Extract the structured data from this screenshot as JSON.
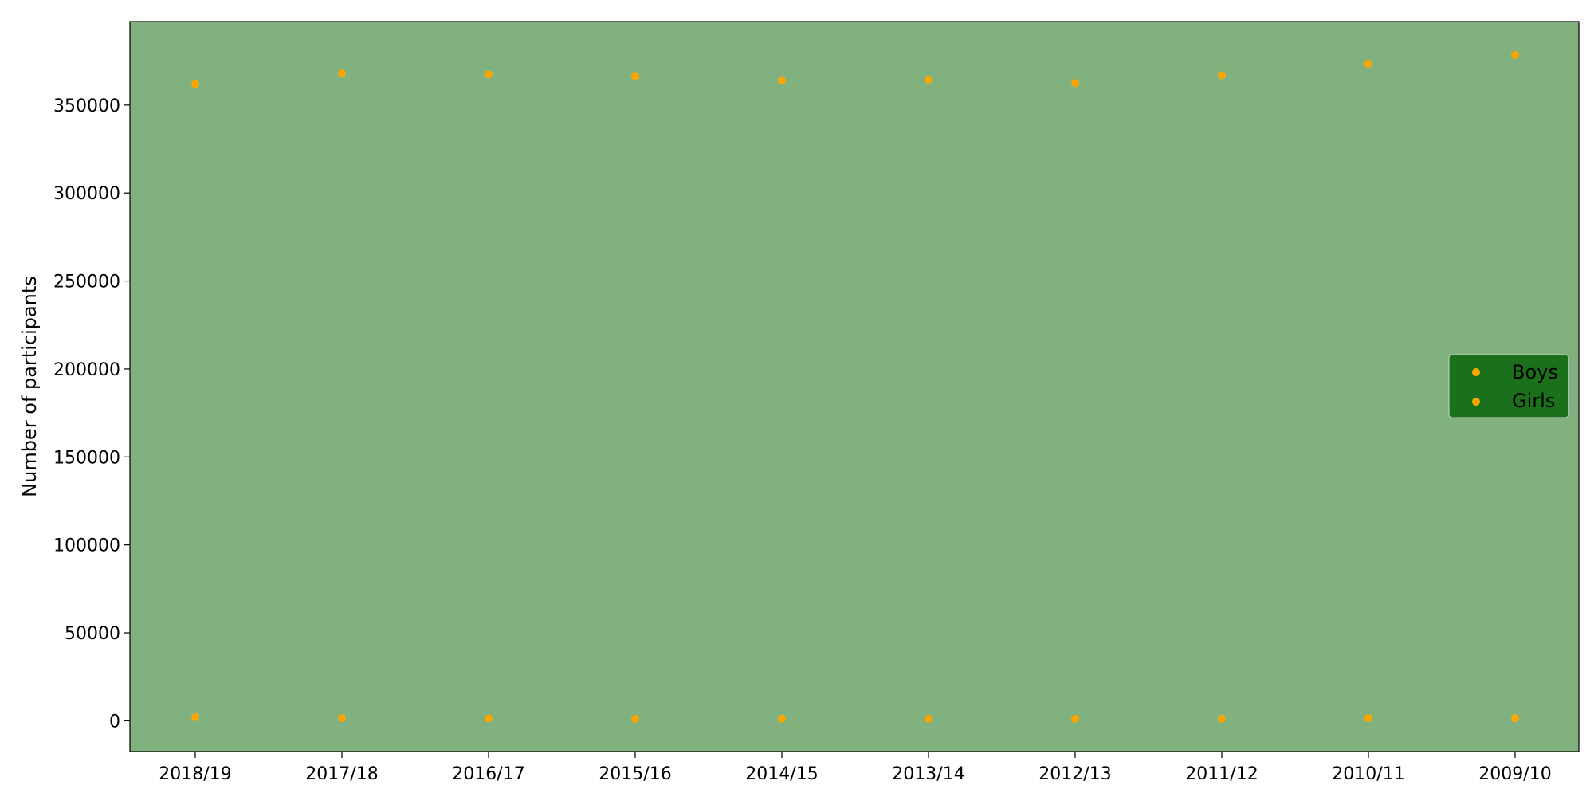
{
  "chart_data": {
    "type": "scatter",
    "title": "",
    "xlabel": "",
    "ylabel": "Number of participants",
    "categories": [
      "2018/19",
      "2017/18",
      "2016/17",
      "2015/16",
      "2014/15",
      "2013/14",
      "2012/13",
      "2011/12",
      "2010/11",
      "2009/10"
    ],
    "yticks": [
      0,
      50000,
      100000,
      150000,
      200000,
      250000,
      300000,
      350000
    ],
    "ylim": [
      -17500,
      397500
    ],
    "grid": false,
    "legend_position": "center-right",
    "series": [
      {
        "name": "Boys",
        "color": "#FFA500",
        "values": [
          362000,
          368000,
          367500,
          366500,
          364000,
          364500,
          362500,
          367000,
          373500,
          378500
        ]
      },
      {
        "name": "Girls",
        "color": "#FFA500",
        "values": [
          2000,
          1500,
          1300,
          1200,
          1200,
          1200,
          1200,
          1200,
          1500,
          1500
        ]
      }
    ],
    "colors": {
      "plot_background": "#80B17F",
      "legend_background": "#1B701B",
      "marker": "#FFA500"
    }
  }
}
